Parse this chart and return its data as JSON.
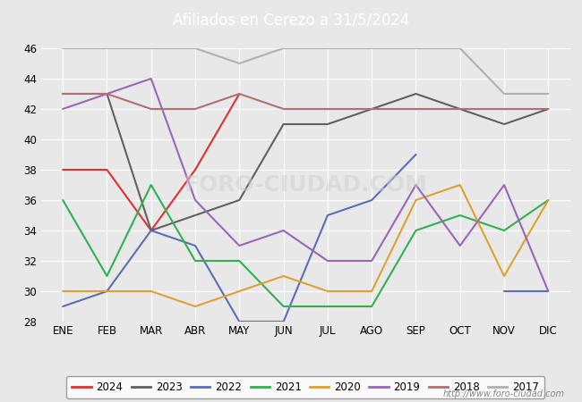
{
  "title": "Afiliados en Cerezo a 31/5/2024",
  "header_bg": "#4a6fa5",
  "background_color": "#e8e8e8",
  "months": [
    "ENE",
    "FEB",
    "MAR",
    "ABR",
    "MAY",
    "JUN",
    "JUL",
    "AGO",
    "SEP",
    "OCT",
    "NOV",
    "DIC"
  ],
  "ylim": [
    28,
    46
  ],
  "yticks": [
    28,
    30,
    32,
    34,
    36,
    38,
    40,
    42,
    44,
    46
  ],
  "series": {
    "2024": {
      "values": [
        38,
        38,
        34,
        38,
        43,
        null,
        null,
        null,
        null,
        null,
        null,
        null
      ],
      "color": "#e03030",
      "linewidth": 1.5
    },
    "2023": {
      "values": [
        43,
        43,
        34,
        35,
        36,
        41,
        41,
        42,
        43,
        42,
        41,
        42
      ],
      "color": "#606060",
      "linewidth": 1.5
    },
    "2022": {
      "values": [
        29,
        30,
        34,
        33,
        28,
        28,
        35,
        36,
        39,
        null,
        30,
        30
      ],
      "color": "#5b6eb5",
      "linewidth": 1.5
    },
    "2021": {
      "values": [
        36,
        31,
        37,
        32,
        32,
        29,
        29,
        29,
        34,
        35,
        34,
        36
      ],
      "color": "#30b050",
      "linewidth": 1.5
    },
    "2020": {
      "values": [
        30,
        30,
        30,
        29,
        30,
        31,
        30,
        30,
        36,
        37,
        31,
        36
      ],
      "color": "#e0a030",
      "linewidth": 1.5
    },
    "2019": {
      "values": [
        42,
        43,
        44,
        36,
        33,
        34,
        32,
        32,
        37,
        33,
        37,
        30
      ],
      "color": "#9966bb",
      "linewidth": 1.5
    },
    "2018": {
      "values": [
        43,
        43,
        42,
        42,
        43,
        42,
        42,
        42,
        42,
        42,
        42,
        42
      ],
      "color": "#b07070",
      "linewidth": 1.5
    },
    "2017": {
      "values": [
        46,
        46,
        46,
        46,
        45,
        46,
        46,
        46,
        46,
        46,
        43,
        43
      ],
      "color": "#b0b0b0",
      "linewidth": 1.5
    }
  },
  "legend_order": [
    "2024",
    "2023",
    "2022",
    "2021",
    "2020",
    "2019",
    "2018",
    "2017"
  ],
  "watermark": "http://www.foro-ciudad.com",
  "grid_color": "#ffffff",
  "tick_label_fontsize": 8.5,
  "legend_fontsize": 8.5
}
